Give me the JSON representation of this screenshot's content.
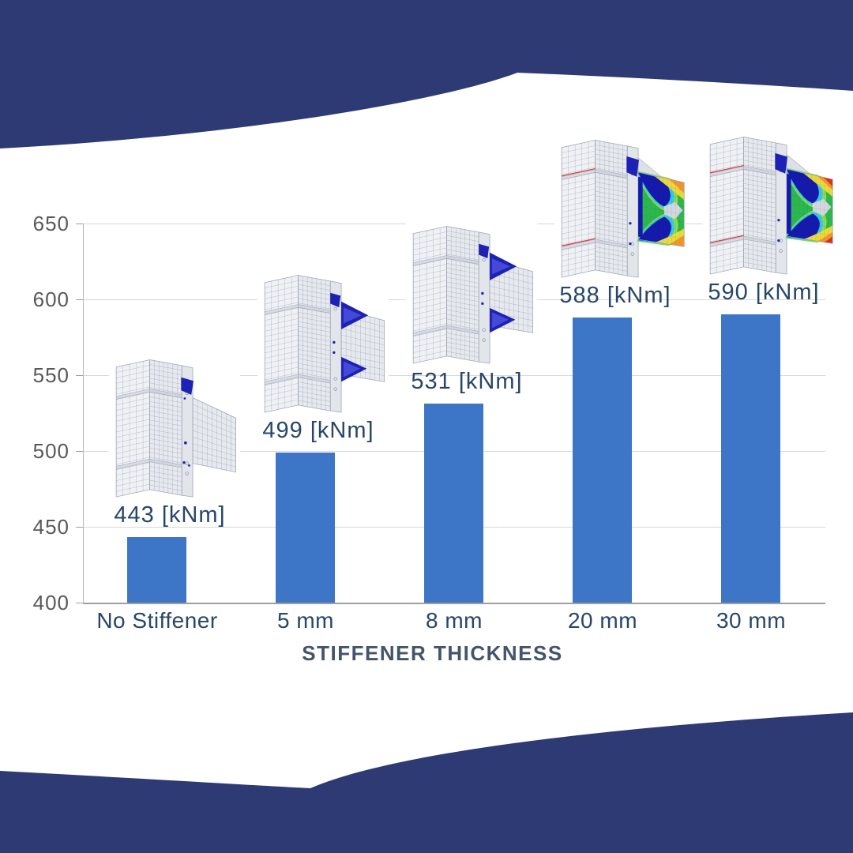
{
  "banner": {
    "color": "#2d3a73",
    "top_shape": "curved-navy-header",
    "bottom_shape": "curved-navy-footer"
  },
  "chart_data": {
    "type": "bar",
    "title": "",
    "xlabel": "STIFFENER THICKNESS",
    "ylabel": "",
    "categories": [
      "No Stiffener",
      "5 mm",
      "8 mm",
      "20 mm",
      "30 mm"
    ],
    "values": [
      443,
      499,
      531,
      588,
      590
    ],
    "value_labels": [
      "443 [kNm]",
      "499 [kNm]",
      "531 [kNm]",
      "588 [kNm]",
      "590 [kNm]"
    ],
    "ylim": [
      400,
      650
    ],
    "yticks": [
      650,
      600,
      550,
      500,
      450,
      400
    ],
    "grid": true,
    "legend": false,
    "bar_color": "#3d76c7",
    "fea_images": [
      {
        "name": "fea-no-stiffener-mesh",
        "variant": "plain"
      },
      {
        "name": "fea-5mm-stiffener-mesh",
        "variant": "stiffener"
      },
      {
        "name": "fea-8mm-stiffener-mesh",
        "variant": "stiffener"
      },
      {
        "name": "fea-20mm-stress-contour",
        "variant": "contour"
      },
      {
        "name": "fea-30mm-stress-contour",
        "variant": "contour-hot"
      }
    ]
  },
  "colors": {
    "band": "#2d3a73",
    "bar": "#3d76c7",
    "label_text": "#274669",
    "tick_text": "#595959",
    "axis_title": "#44546a",
    "gridline": "#d8d8d8",
    "baseline": "#9e9e9e",
    "fea_blue": "#1d21b4",
    "contour_green": "#2db84d",
    "contour_cyan": "#35c8e8",
    "contour_yellow": "#ead93c",
    "contour_orange": "#f0962e",
    "contour_red": "#dc2f1f"
  }
}
